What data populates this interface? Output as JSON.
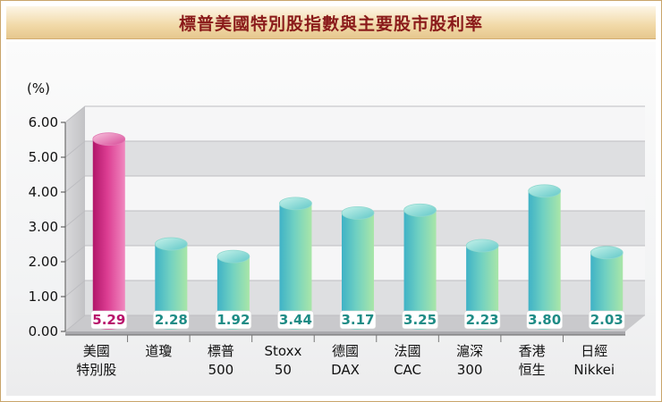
{
  "chart_data": {
    "type": "bar",
    "title": "標普美國特別股指數與主要股市股利率",
    "ylabel": "(%)",
    "ylim": [
      0,
      6
    ],
    "yticks": [
      "0.00",
      "1.00",
      "2.00",
      "3.00",
      "4.00",
      "5.00",
      "6.00"
    ],
    "categories": [
      [
        "美國",
        "特別股"
      ],
      [
        "道瓊"
      ],
      [
        "標普",
        "500"
      ],
      [
        "Stoxx",
        "50"
      ],
      [
        "德國",
        "DAX"
      ],
      [
        "法國",
        "CAC"
      ],
      [
        "滬深",
        "300"
      ],
      [
        "香港",
        "恒生"
      ],
      [
        "日經",
        "Nikkei"
      ]
    ],
    "values": [
      5.29,
      2.28,
      1.92,
      3.44,
      3.17,
      3.25,
      2.23,
      3.8,
      2.03
    ],
    "value_labels": [
      "5.29",
      "2.28",
      "1.92",
      "3.44",
      "3.17",
      "3.25",
      "2.23",
      "3.80",
      "2.03"
    ],
    "grid": true,
    "legend": "none",
    "colors": {
      "highlight": "#c4257a",
      "bar": "#3fb3c3",
      "bar_top": "#8fe0cc",
      "label_highlight": "#b8126b",
      "label": "#1f8c86",
      "title": "#8a1a1a"
    }
  }
}
